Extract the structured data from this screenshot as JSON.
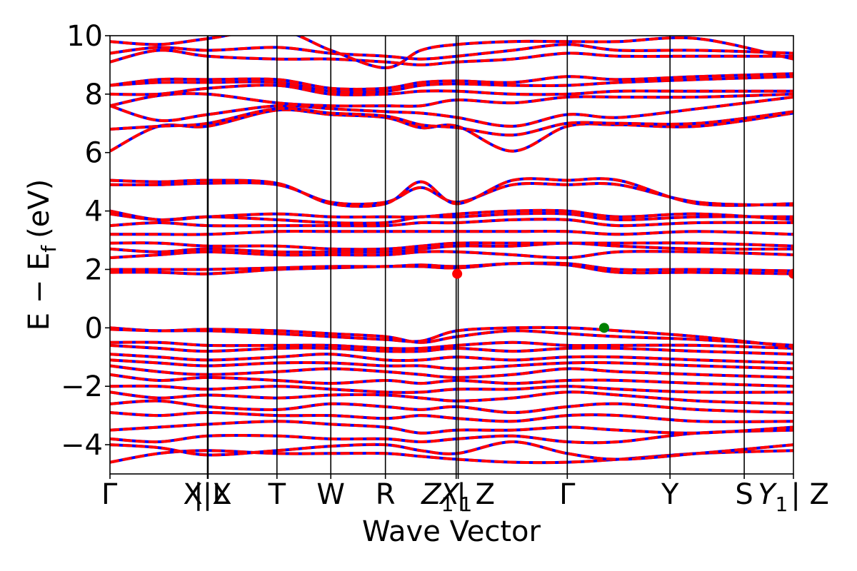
{
  "chart_data": {
    "type": "line",
    "title": "",
    "xlabel": "Wave Vector",
    "ylabel": "E − E",
    "ylabel_subscript": "f",
    "ylabel_unit": "(eV)",
    "ylim": [
      -5,
      10
    ],
    "yticks": [
      -4,
      -2,
      0,
      2,
      4,
      6,
      8,
      10
    ],
    "ytick_labels": [
      "−4",
      "−2",
      "0",
      "2",
      "4",
      "6",
      "8",
      "10"
    ],
    "xlim": [
      0,
      100
    ],
    "kpoints": [
      {
        "x": 0.0,
        "label": "Γ",
        "sub": "",
        "suffix": ""
      },
      {
        "x": 14.26,
        "label": "X|X",
        "sub": "",
        "suffix": ""
      },
      {
        "x": 14.36,
        "label": "",
        "sub": "",
        "suffix": "| L"
      },
      {
        "x": 24.43,
        "label": "T",
        "sub": "",
        "suffix": ""
      },
      {
        "x": 32.31,
        "label": "W",
        "sub": "",
        "suffix": ""
      },
      {
        "x": 40.3,
        "label": "R",
        "sub": "",
        "suffix": ""
      },
      {
        "x": 50.65,
        "label": "X",
        "sub": "1",
        "suffix": ""
      },
      {
        "x": 50.95,
        "label": "Z",
        "sub": "1",
        "suffix": "| Z"
      },
      {
        "x": 66.91,
        "label": "Γ",
        "sub": "",
        "suffix": ""
      },
      {
        "x": 81.94,
        "label": "Y",
        "sub": "",
        "suffix": ""
      },
      {
        "x": 92.8,
        "label": "S",
        "sub": "",
        "suffix": ""
      },
      {
        "x": 100.0,
        "label": "Y",
        "sub": "1",
        "suffix": "| Z"
      }
    ],
    "grid": false,
    "legend": "none",
    "colors": {
      "band_solid": "#0000ff",
      "band_dashed": "#ff0000",
      "vbm_marker": "#008000",
      "cbm_marker": "#ff0000",
      "kline": "#000000"
    },
    "vbm": {
      "x": 72.3,
      "y": 0.0
    },
    "cbm": [
      {
        "x": 50.8,
        "y": 1.85
      },
      {
        "x": 100.0,
        "y": 1.85
      }
    ],
    "bands": [
      {
        "name": "v1",
        "values": [
          -4.6,
          -4.3,
          -4.2,
          -4.3,
          -4.3,
          -4.3,
          -4.4,
          -4.5,
          -4.6,
          -4.6,
          -4.5,
          -4.3,
          -4.2
        ]
      },
      {
        "name": "v2",
        "values": [
          -4.0,
          -4.1,
          -4.35,
          -4.2,
          -4.05,
          -4.0,
          -4.2,
          -4.3,
          -3.9,
          -4.3,
          -4.5,
          -4.3,
          -4.0
        ]
      },
      {
        "name": "v3",
        "values": [
          -3.8,
          -3.9,
          -3.7,
          -3.7,
          -3.8,
          -3.8,
          -3.9,
          -3.8,
          -3.7,
          -3.9,
          -3.9,
          -3.6,
          -3.5
        ]
      },
      {
        "name": "v4",
        "values": [
          -3.5,
          -3.4,
          -3.3,
          -3.2,
          -3.3,
          -3.4,
          -3.6,
          -3.5,
          -3.5,
          -3.4,
          -3.5,
          -3.6,
          -3.4
        ]
      },
      {
        "name": "v5",
        "values": [
          -2.9,
          -3.0,
          -2.9,
          -3.0,
          -3.0,
          -3.1,
          -3.0,
          -3.1,
          -3.2,
          -3.0,
          -3.0,
          -3.2,
          -3.2
        ]
      },
      {
        "name": "v6",
        "values": [
          -2.6,
          -2.5,
          -2.7,
          -2.8,
          -2.6,
          -2.7,
          -2.8,
          -2.7,
          -2.9,
          -2.7,
          -2.6,
          -2.8,
          -2.9
        ]
      },
      {
        "name": "v7",
        "values": [
          -2.2,
          -2.4,
          -2.3,
          -2.4,
          -2.3,
          -2.3,
          -2.4,
          -2.5,
          -2.4,
          -2.2,
          -2.3,
          -2.5,
          -2.6
        ]
      },
      {
        "name": "v8",
        "values": [
          -2.0,
          -2.0,
          -2.1,
          -2.0,
          -2.1,
          -2.2,
          -2.2,
          -2.1,
          -2.1,
          -2.0,
          -2.1,
          -2.2,
          -2.2
        ]
      },
      {
        "name": "v9",
        "values": [
          -1.6,
          -1.8,
          -1.7,
          -1.8,
          -1.9,
          -1.8,
          -1.9,
          -1.8,
          -1.9,
          -1.8,
          -1.8,
          -1.9,
          -2.0
        ]
      },
      {
        "name": "v10",
        "values": [
          -1.3,
          -1.5,
          -1.6,
          -1.5,
          -1.4,
          -1.5,
          -1.6,
          -1.7,
          -1.6,
          -1.4,
          -1.5,
          -1.6,
          -1.7
        ]
      },
      {
        "name": "v11",
        "values": [
          -1.1,
          -1.2,
          -1.3,
          -1.2,
          -1.2,
          -1.3,
          -1.3,
          -1.4,
          -1.3,
          -1.2,
          -1.2,
          -1.3,
          -1.4
        ]
      },
      {
        "name": "v12",
        "values": [
          -0.9,
          -1.0,
          -1.1,
          -1.0,
          -0.9,
          -1.1,
          -1.1,
          -1.0,
          -1.1,
          -1.0,
          -1.0,
          -1.1,
          -1.2
        ]
      },
      {
        "name": "v13",
        "values": [
          -0.6,
          -0.7,
          -0.8,
          -0.7,
          -0.7,
          -0.8,
          -0.8,
          -0.7,
          -0.8,
          -0.7,
          -0.7,
          -0.8,
          -0.9
        ]
      },
      {
        "name": "v14",
        "values": [
          -0.5,
          -0.5,
          -0.6,
          -0.6,
          -0.6,
          -0.7,
          -0.7,
          -0.6,
          -0.5,
          -0.6,
          -0.6,
          -0.6,
          -0.7
        ]
      },
      {
        "name": "v15",
        "values": [
          0.0,
          -0.1,
          -0.05,
          -0.1,
          -0.2,
          -0.3,
          -0.5,
          -0.3,
          -0.1,
          -0.2,
          -0.3,
          -0.4,
          -0.6
        ]
      },
      {
        "name": "v16",
        "values": [
          -0.05,
          -0.1,
          -0.1,
          -0.2,
          -0.3,
          -0.4,
          -0.45,
          -0.1,
          0.0,
          0.0,
          -0.1,
          -0.3,
          -0.65
        ]
      },
      {
        "name": "c1",
        "values": [
          1.9,
          1.9,
          1.85,
          2.0,
          2.05,
          2.1,
          2.1,
          2.05,
          2.2,
          2.15,
          1.9,
          1.9,
          1.85
        ]
      },
      {
        "name": "c2",
        "values": [
          2.0,
          2.0,
          2.0,
          2.05,
          2.1,
          2.1,
          2.15,
          2.1,
          2.2,
          2.2,
          2.0,
          2.0,
          1.95
        ]
      },
      {
        "name": "c3",
        "values": [
          2.4,
          2.5,
          2.6,
          2.5,
          2.5,
          2.5,
          2.6,
          2.6,
          2.5,
          2.4,
          2.6,
          2.6,
          2.5
        ]
      },
      {
        "name": "c4",
        "values": [
          2.7,
          2.6,
          2.7,
          2.6,
          2.6,
          2.6,
          2.7,
          2.8,
          2.8,
          2.9,
          2.8,
          2.7,
          2.7
        ]
      },
      {
        "name": "c5",
        "values": [
          2.9,
          2.9,
          2.8,
          2.8,
          2.7,
          2.7,
          2.8,
          2.9,
          2.9,
          2.9,
          2.9,
          2.9,
          2.8
        ]
      },
      {
        "name": "c6",
        "values": [
          3.2,
          3.2,
          3.2,
          3.3,
          3.3,
          3.3,
          3.3,
          3.3,
          3.3,
          3.3,
          3.2,
          3.3,
          3.2
        ]
      },
      {
        "name": "c7",
        "values": [
          3.5,
          3.6,
          3.5,
          3.5,
          3.5,
          3.5,
          3.6,
          3.6,
          3.7,
          3.7,
          3.5,
          3.6,
          3.6
        ]
      },
      {
        "name": "c8",
        "values": [
          3.9,
          3.7,
          3.8,
          3.7,
          3.6,
          3.6,
          3.8,
          3.8,
          3.9,
          3.9,
          3.7,
          3.8,
          3.8
        ]
      },
      {
        "name": "c9",
        "values": [
          4.0,
          3.7,
          3.8,
          3.9,
          3.8,
          3.8,
          3.8,
          3.9,
          4.0,
          4.0,
          3.8,
          3.9,
          3.7
        ]
      },
      {
        "name": "c10",
        "values": [
          4.9,
          4.9,
          4.95,
          4.9,
          4.3,
          4.3,
          4.8,
          4.3,
          4.9,
          4.9,
          4.9,
          4.3,
          4.2
        ]
      },
      {
        "name": "c11",
        "values": [
          5.05,
          5.0,
          5.05,
          4.95,
          4.25,
          4.25,
          5.0,
          4.25,
          5.05,
          5.05,
          5.05,
          4.25,
          4.25
        ]
      },
      {
        "name": "c12",
        "values": [
          6.05,
          6.9,
          6.9,
          7.45,
          7.3,
          7.2,
          6.85,
          6.9,
          6.05,
          6.9,
          6.95,
          6.9,
          7.35
        ]
      },
      {
        "name": "c13",
        "values": [
          6.8,
          6.9,
          7.0,
          7.5,
          7.35,
          7.25,
          6.95,
          6.85,
          6.6,
          7.0,
          7.0,
          7.0,
          7.4
        ]
      },
      {
        "name": "c14",
        "values": [
          7.6,
          7.1,
          7.3,
          7.6,
          7.5,
          7.4,
          7.35,
          7.2,
          6.9,
          7.3,
          7.2,
          7.5,
          7.9
        ]
      },
      {
        "name": "c15",
        "values": [
          7.6,
          7.95,
          8.0,
          7.7,
          7.6,
          7.6,
          7.6,
          7.8,
          7.7,
          7.9,
          7.9,
          7.9,
          8.0
        ]
      },
      {
        "name": "c16",
        "values": [
          8.0,
          8.0,
          8.2,
          8.3,
          8.0,
          8.0,
          8.1,
          8.1,
          8.0,
          8.0,
          8.1,
          8.1,
          8.1
        ]
      },
      {
        "name": "c17",
        "values": [
          8.3,
          8.4,
          8.4,
          8.4,
          8.1,
          8.1,
          8.3,
          8.35,
          8.3,
          8.3,
          8.4,
          8.5,
          8.6
        ]
      },
      {
        "name": "c18",
        "values": [
          8.3,
          8.5,
          8.5,
          8.5,
          8.2,
          8.2,
          8.4,
          8.45,
          8.4,
          8.6,
          8.5,
          8.6,
          8.7
        ]
      },
      {
        "name": "c19",
        "values": [
          9.1,
          9.5,
          9.3,
          9.2,
          9.2,
          9.1,
          9.0,
          9.1,
          9.2,
          9.4,
          9.3,
          9.3,
          9.3
        ]
      },
      {
        "name": "c20",
        "values": [
          9.4,
          9.6,
          9.5,
          9.6,
          9.4,
          9.3,
          9.2,
          9.3,
          9.5,
          9.7,
          9.5,
          9.5,
          9.4
        ]
      },
      {
        "name": "c21",
        "values": [
          9.8,
          9.7,
          9.9,
          10.2,
          9.5,
          8.9,
          9.5,
          9.7,
          9.8,
          9.8,
          9.8,
          9.9,
          9.2
        ]
      }
    ],
    "band_x": [
      0.0,
      7.13,
      14.3,
      24.43,
      32.31,
      40.3,
      45.5,
      50.8,
      58.9,
      66.91,
      74.4,
      86.0,
      100.0
    ]
  }
}
